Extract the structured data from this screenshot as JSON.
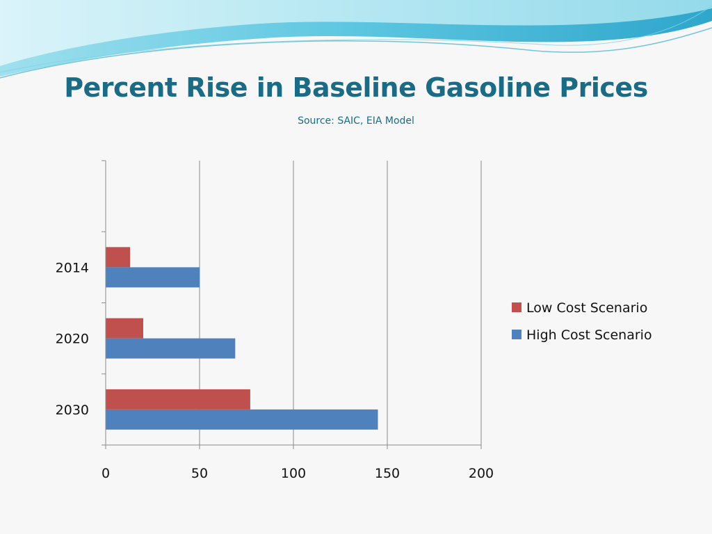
{
  "slide": {
    "title": "Percent Rise in Baseline Gasoline Prices",
    "subtitle": "Source: SAIC, EIA Model"
  },
  "colors": {
    "title": "#1a6b83",
    "banner_light": "#c9eef5",
    "banner_mid": "#7fd3e6",
    "banner_dark": "#3aaecf"
  },
  "chart_data": {
    "type": "bar",
    "orientation": "horizontal",
    "categories": [
      "2014",
      "2020",
      "2030"
    ],
    "series": [
      {
        "name": "Low Cost Scenario",
        "values": [
          13,
          20,
          77
        ],
        "color": "#c0504d"
      },
      {
        "name": "High Cost Scenario",
        "values": [
          50,
          69,
          145
        ],
        "color": "#4f81bd"
      }
    ],
    "xlim": [
      0,
      200
    ],
    "xticks": [
      "0",
      "50",
      "100",
      "150",
      "200"
    ],
    "grid": true,
    "legend": "right"
  }
}
